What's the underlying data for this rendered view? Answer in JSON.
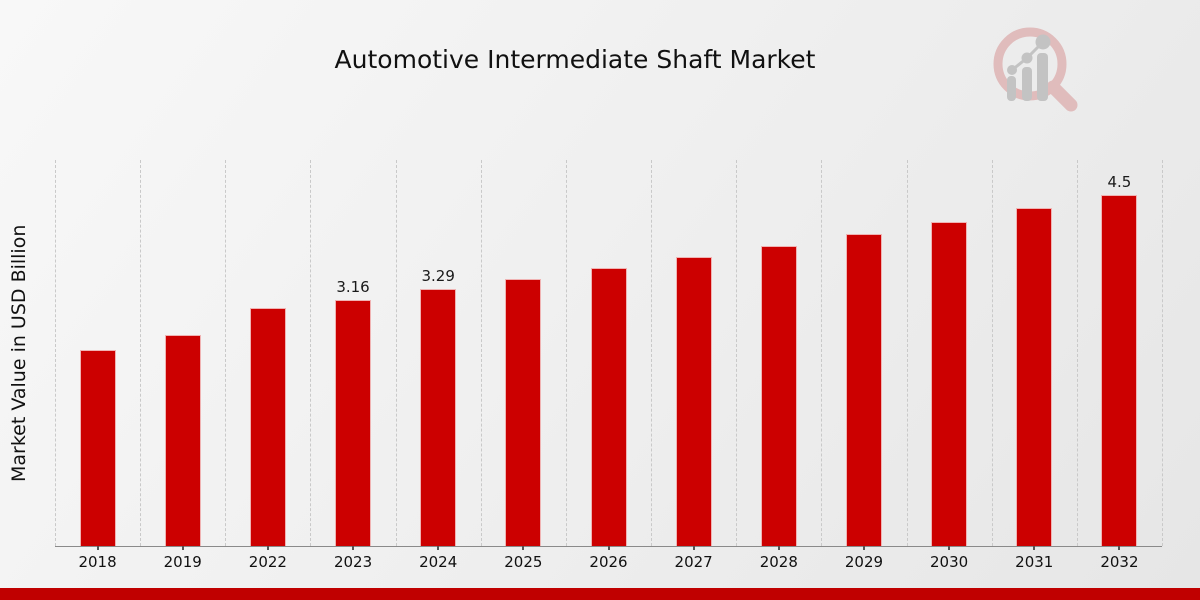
{
  "page": {
    "title": "Automotive Intermediate Shaft Market"
  },
  "chart_data": {
    "type": "bar",
    "title": "Automotive Intermediate Shaft Market",
    "xlabel": "",
    "ylabel": "Market Value in USD Billion",
    "categories": [
      "2018",
      "2019",
      "2022",
      "2023",
      "2024",
      "2025",
      "2026",
      "2027",
      "2028",
      "2029",
      "2030",
      "2031",
      "2032"
    ],
    "values": [
      2.51,
      2.71,
      3.05,
      3.16,
      3.29,
      3.42,
      3.56,
      3.7,
      3.85,
      4.0,
      4.16,
      4.33,
      4.5
    ],
    "value_labels": [
      "",
      "",
      "",
      "3.16",
      "3.29",
      "",
      "",
      "",
      "",
      "",
      "",
      "",
      "4.5"
    ],
    "ylim": [
      0,
      4.95
    ],
    "grid": "vertical-dashed",
    "legend": "none",
    "bar_color": "#cc0000"
  },
  "colors": {
    "bar": "#cc0000",
    "footer_band": "#c00000",
    "gridline": "#c9c9c9",
    "axis_line": "#8a8a8a",
    "text": "#111111",
    "watermark_ring": "#e0bcbc",
    "watermark_bars": "#c3c3c3"
  },
  "watermark": {
    "name": "market-research-future-logo"
  }
}
